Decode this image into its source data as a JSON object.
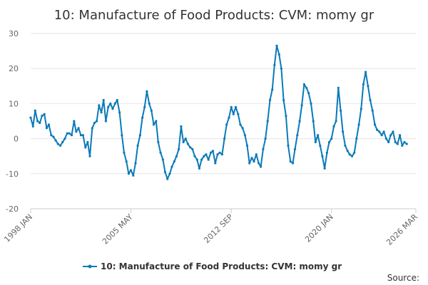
{
  "chart_data": {
    "type": "line",
    "title": "10: Manufacture of Food Products: CVM: momy gr",
    "xlabel": "",
    "ylabel": "",
    "ylim": [
      -20,
      30
    ],
    "yticks": [
      30,
      20,
      10,
      0,
      -10,
      -20
    ],
    "xlim": [
      1998.0,
      2026.17
    ],
    "xticks": [
      {
        "label": "1998 JAN",
        "x": 1998.0
      },
      {
        "label": "2005 MAY",
        "x": 2005.33
      },
      {
        "label": "2012 SEP",
        "x": 2012.67
      },
      {
        "label": "2020 JAN",
        "x": 2020.0
      },
      {
        "label": "2026 MAR",
        "x": 2026.17
      }
    ],
    "grid": true,
    "legend_position": "bottom",
    "series": [
      {
        "name": "10: Manufacture of Food Products: CVM: momy gr",
        "color": "#0a7ab8",
        "points": [
          [
            1998.0,
            6
          ],
          [
            1998.17,
            3.5
          ],
          [
            1998.33,
            8
          ],
          [
            1998.5,
            5
          ],
          [
            1998.67,
            4.5
          ],
          [
            1998.83,
            6.5
          ],
          [
            1999.0,
            7
          ],
          [
            1999.17,
            3
          ],
          [
            1999.33,
            4
          ],
          [
            1999.5,
            1
          ],
          [
            1999.67,
            0.5
          ],
          [
            1999.83,
            -0.5
          ],
          [
            2000.0,
            -1.5
          ],
          [
            2000.17,
            -2
          ],
          [
            2000.33,
            -1
          ],
          [
            2000.5,
            0
          ],
          [
            2000.67,
            1.5
          ],
          [
            2000.83,
            1.5
          ],
          [
            2001.0,
            1
          ],
          [
            2001.17,
            5
          ],
          [
            2001.33,
            2
          ],
          [
            2001.5,
            3
          ],
          [
            2001.67,
            1
          ],
          [
            2001.83,
            1
          ],
          [
            2002.0,
            -2.5
          ],
          [
            2002.17,
            -1
          ],
          [
            2002.33,
            -5
          ],
          [
            2002.5,
            3
          ],
          [
            2002.67,
            4.5
          ],
          [
            2002.83,
            5
          ],
          [
            2003.0,
            9.5
          ],
          [
            2003.17,
            7.5
          ],
          [
            2003.33,
            11
          ],
          [
            2003.5,
            5
          ],
          [
            2003.67,
            9
          ],
          [
            2003.83,
            10
          ],
          [
            2004.0,
            8.5
          ],
          [
            2004.17,
            10
          ],
          [
            2004.33,
            11
          ],
          [
            2004.5,
            7.5
          ],
          [
            2004.67,
            1
          ],
          [
            2004.83,
            -4
          ],
          [
            2005.0,
            -6.5
          ],
          [
            2005.17,
            -10
          ],
          [
            2005.33,
            -9
          ],
          [
            2005.5,
            -10.5
          ],
          [
            2005.67,
            -7
          ],
          [
            2005.83,
            -2
          ],
          [
            2006.0,
            1
          ],
          [
            2006.17,
            6
          ],
          [
            2006.33,
            9
          ],
          [
            2006.5,
            13.5
          ],
          [
            2006.67,
            10
          ],
          [
            2006.83,
            8
          ],
          [
            2007.0,
            4
          ],
          [
            2007.17,
            5
          ],
          [
            2007.33,
            -1
          ],
          [
            2007.5,
            -4
          ],
          [
            2007.67,
            -6
          ],
          [
            2007.83,
            -9.5
          ],
          [
            2008.0,
            -11.5
          ],
          [
            2008.17,
            -10
          ],
          [
            2008.33,
            -8
          ],
          [
            2008.5,
            -6.5
          ],
          [
            2008.67,
            -5
          ],
          [
            2008.83,
            -3
          ],
          [
            2009.0,
            3.5
          ],
          [
            2009.17,
            -1
          ],
          [
            2009.33,
            0
          ],
          [
            2009.5,
            -1.5
          ],
          [
            2009.67,
            -2.5
          ],
          [
            2009.83,
            -3
          ],
          [
            2010.0,
            -5
          ],
          [
            2010.17,
            -6
          ],
          [
            2010.33,
            -8.5
          ],
          [
            2010.5,
            -6
          ],
          [
            2010.67,
            -5
          ],
          [
            2010.83,
            -4.5
          ],
          [
            2011.0,
            -6
          ],
          [
            2011.17,
            -4
          ],
          [
            2011.33,
            -3.5
          ],
          [
            2011.5,
            -7
          ],
          [
            2011.67,
            -4.5
          ],
          [
            2011.83,
            -4
          ],
          [
            2012.0,
            -4.5
          ],
          [
            2012.17,
            0
          ],
          [
            2012.33,
            4
          ],
          [
            2012.5,
            6
          ],
          [
            2012.67,
            9
          ],
          [
            2012.83,
            7
          ],
          [
            2013.0,
            9
          ],
          [
            2013.17,
            7
          ],
          [
            2013.33,
            4
          ],
          [
            2013.5,
            3
          ],
          [
            2013.67,
            1
          ],
          [
            2013.83,
            -2
          ],
          [
            2014.0,
            -7
          ],
          [
            2014.17,
            -5.5
          ],
          [
            2014.33,
            -6.5
          ],
          [
            2014.5,
            -4.5
          ],
          [
            2014.67,
            -7
          ],
          [
            2014.83,
            -8
          ],
          [
            2015.0,
            -3
          ],
          [
            2015.17,
            0
          ],
          [
            2015.33,
            5
          ],
          [
            2015.5,
            11
          ],
          [
            2015.67,
            14
          ],
          [
            2015.83,
            21
          ],
          [
            2016.0,
            26.5
          ],
          [
            2016.17,
            24
          ],
          [
            2016.33,
            20
          ],
          [
            2016.5,
            11
          ],
          [
            2016.67,
            6.5
          ],
          [
            2016.83,
            -2
          ],
          [
            2017.0,
            -6.5
          ],
          [
            2017.17,
            -7
          ],
          [
            2017.33,
            -3
          ],
          [
            2017.5,
            1
          ],
          [
            2017.67,
            5
          ],
          [
            2017.83,
            9.5
          ],
          [
            2018.0,
            15.5
          ],
          [
            2018.17,
            14.5
          ],
          [
            2018.33,
            13
          ],
          [
            2018.5,
            10
          ],
          [
            2018.67,
            5
          ],
          [
            2018.83,
            -1
          ],
          [
            2019.0,
            1
          ],
          [
            2019.17,
            -2
          ],
          [
            2019.33,
            -5
          ],
          [
            2019.5,
            -8.5
          ],
          [
            2019.67,
            -4
          ],
          [
            2019.83,
            -1
          ],
          [
            2020.0,
            0
          ],
          [
            2020.17,
            3.5
          ],
          [
            2020.33,
            5
          ],
          [
            2020.5,
            14.5
          ],
          [
            2020.67,
            8
          ],
          [
            2020.83,
            2
          ],
          [
            2021.0,
            -2
          ],
          [
            2021.17,
            -3.5
          ],
          [
            2021.33,
            -4.5
          ],
          [
            2021.5,
            -5
          ],
          [
            2021.67,
            -4
          ],
          [
            2021.83,
            0
          ],
          [
            2022.0,
            4
          ],
          [
            2022.17,
            8.5
          ],
          [
            2022.33,
            15.5
          ],
          [
            2022.5,
            19
          ],
          [
            2022.67,
            15
          ],
          [
            2022.83,
            11
          ],
          [
            2023.0,
            8
          ],
          [
            2023.17,
            4
          ],
          [
            2023.33,
            2.5
          ],
          [
            2023.5,
            2
          ],
          [
            2023.67,
            1
          ],
          [
            2023.83,
            2
          ],
          [
            2024.0,
            0
          ],
          [
            2024.17,
            -1
          ],
          [
            2024.33,
            1
          ],
          [
            2024.5,
            2
          ],
          [
            2024.67,
            -1
          ],
          [
            2024.83,
            -1.5
          ],
          [
            2025.0,
            1
          ],
          [
            2025.17,
            -2
          ],
          [
            2025.33,
            -1
          ],
          [
            2025.5,
            -1.5
          ]
        ]
      }
    ]
  },
  "source_label": "Source:"
}
